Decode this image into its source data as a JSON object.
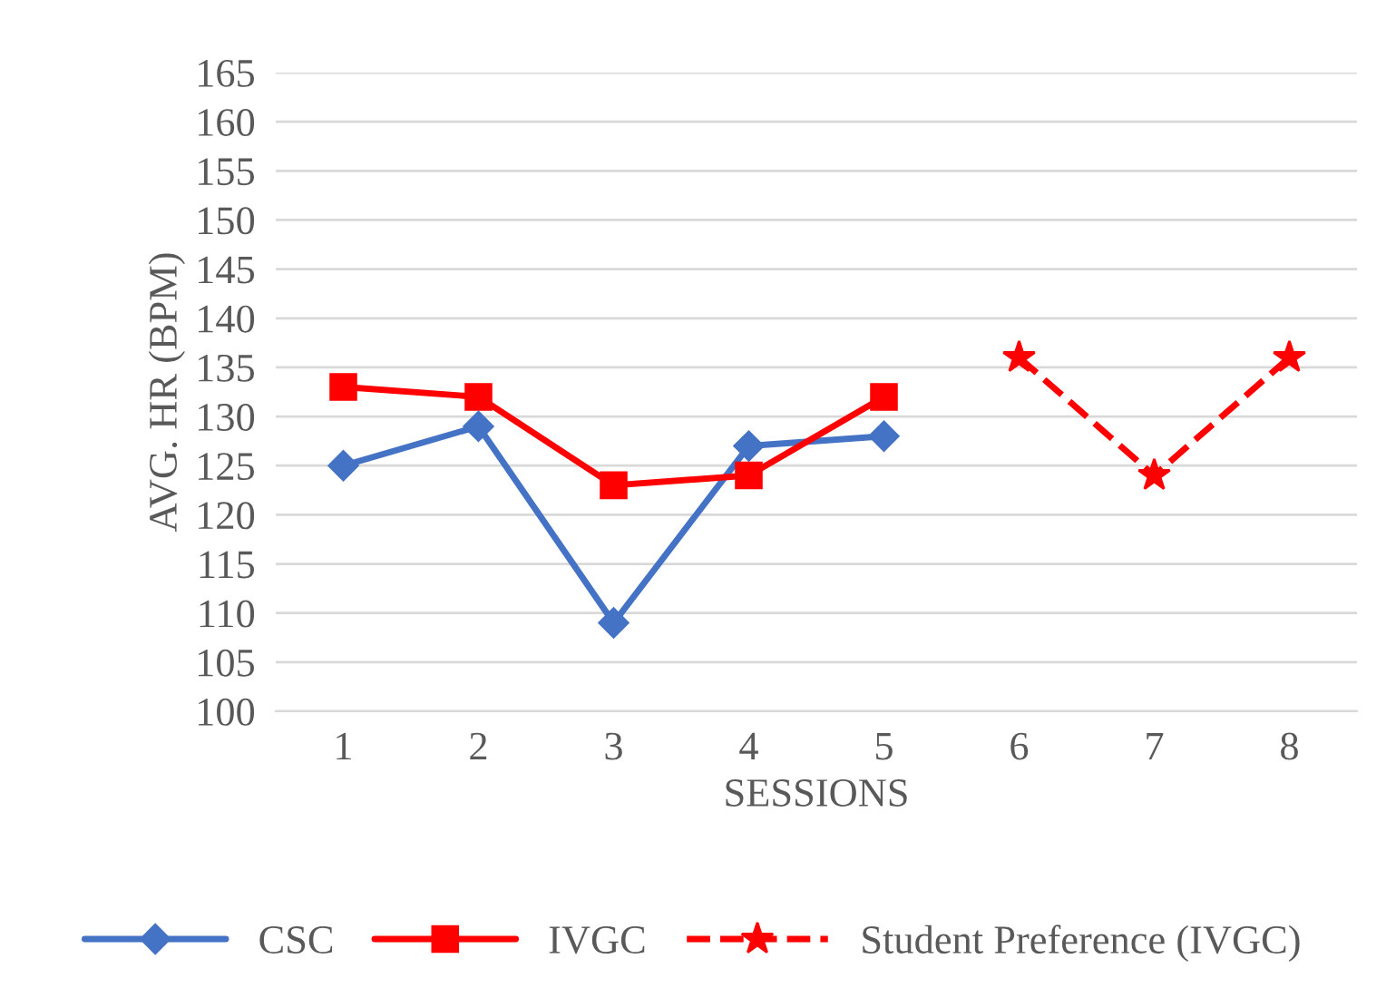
{
  "chart_data": {
    "type": "line",
    "xlabel": "SESSIONS",
    "ylabel": "AVG. HR (BPM)",
    "categories": [
      "1",
      "2",
      "3",
      "4",
      "5",
      "6",
      "7",
      "8"
    ],
    "series": [
      {
        "name": "CSC",
        "color": "#4472c4",
        "values": [
          125,
          129,
          109,
          127,
          128,
          null,
          null,
          null
        ],
        "marker": "diamond",
        "line_style": "solid"
      },
      {
        "name": "IVGC",
        "color": "#ff0000",
        "values": [
          133,
          132,
          123,
          124,
          132,
          null,
          null,
          null
        ],
        "marker": "square",
        "line_style": "solid"
      },
      {
        "name": "Student Preference (IVGC)",
        "color": "#ff0000",
        "values": [
          null,
          null,
          null,
          null,
          null,
          136,
          124,
          136
        ],
        "marker": "star",
        "line_style": "dashed"
      }
    ],
    "ylim": [
      100,
      165
    ],
    "yticks": [
      100,
      105,
      110,
      115,
      120,
      125,
      130,
      135,
      140,
      145,
      150,
      155,
      160,
      165
    ],
    "grid": "y",
    "legend": "bottom"
  }
}
